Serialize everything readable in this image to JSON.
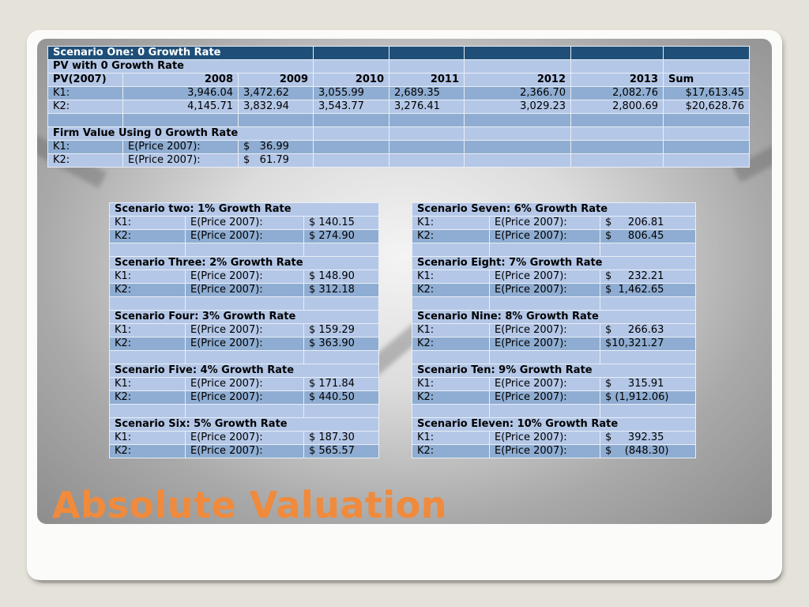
{
  "top_table": {
    "title": "Scenario One: 0 Growth Rate",
    "subtitle": "PV with 0 Growth Rate",
    "header": [
      "PV(2007)",
      "2008",
      "2009",
      "2010",
      "2011",
      "2012",
      "2013",
      "Sum"
    ],
    "rows": [
      [
        "K1:",
        "3,946.04",
        "3,472.62",
        "3,055.99",
        "2,689.35",
        "2,366.70",
        "2,082.76",
        "$17,613.45"
      ],
      [
        "K2:",
        "4,145.71",
        "3,832.94",
        "3,543.77",
        "3,276.41",
        "3,029.23",
        "2,800.69",
        "$20,628.76"
      ]
    ],
    "firm_value_title": "Firm Value Using 0 Growth Rate",
    "firm_rows": [
      [
        "K1:",
        "E(Price 2007):",
        "$   36.99"
      ],
      [
        "K2:",
        "E(Price 2007):",
        "$   61.79"
      ]
    ]
  },
  "left_scenarios": [
    {
      "title": "Scenario two: 1% Growth Rate",
      "rows": [
        [
          "K1:",
          "E(Price 2007):",
          "$ 140.15"
        ],
        [
          "K2:",
          "E(Price 2007):",
          "$ 274.90"
        ]
      ]
    },
    {
      "title": "Scenario Three: 2% Growth Rate",
      "rows": [
        [
          "K1:",
          "E(Price 2007):",
          "$ 148.90"
        ],
        [
          "K2:",
          "E(Price 2007):",
          "$ 312.18"
        ]
      ]
    },
    {
      "title": "Scenario Four: 3% Growth Rate",
      "rows": [
        [
          "K1:",
          "E(Price 2007):",
          "$ 159.29"
        ],
        [
          "K2:",
          "E(Price 2007):",
          "$ 363.90"
        ]
      ]
    },
    {
      "title": "Scenario Five: 4% Growth Rate",
      "rows": [
        [
          "K1:",
          "E(Price 2007):",
          "$ 171.84"
        ],
        [
          "K2:",
          "E(Price 2007):",
          "$ 440.50"
        ]
      ]
    },
    {
      "title": "Scenario Six: 5% Growth Rate",
      "rows": [
        [
          "K1:",
          "E(Price 2007):",
          "$ 187.30"
        ],
        [
          "K2:",
          "E(Price 2007):",
          "$ 565.57"
        ]
      ]
    }
  ],
  "right_scenarios": [
    {
      "title": "Scenario Seven: 6% Growth Rate",
      "rows": [
        [
          "K1:",
          "E(Price 2007):",
          "$     206.81"
        ],
        [
          "K2:",
          "E(Price 2007):",
          "$     806.45"
        ]
      ]
    },
    {
      "title": "Scenario Eight: 7% Growth Rate",
      "rows": [
        [
          "K1:",
          "E(Price 2007):",
          "$     232.21"
        ],
        [
          "K2:",
          "E(Price 2007):",
          "$  1,462.65"
        ]
      ]
    },
    {
      "title": "Scenario Nine: 8% Growth Rate",
      "rows": [
        [
          "K1:",
          "E(Price 2007):",
          "$     266.63"
        ],
        [
          "K2:",
          "E(Price 2007):",
          "$10,321.27"
        ]
      ]
    },
    {
      "title": "Scenario Ten: 9% Growth Rate",
      "rows": [
        [
          "K1:",
          "E(Price 2007):",
          "$     315.91"
        ],
        [
          "K2:",
          "E(Price 2007):",
          "$ (1,912.06)"
        ]
      ]
    },
    {
      "title": "Scenario Eleven: 10% Growth Rate",
      "rows": [
        [
          "K1:",
          "E(Price 2007):",
          "$     392.35"
        ],
        [
          "K2:",
          "E(Price 2007):",
          "$    (848.30)"
        ]
      ]
    }
  ],
  "slide_title": "Absolute Valuation",
  "colors": {
    "title_orange": "#f08a3c",
    "header_navy": "#1f4f78",
    "cell_light": "#b4c7e7",
    "cell_medium": "#8fadd2"
  }
}
